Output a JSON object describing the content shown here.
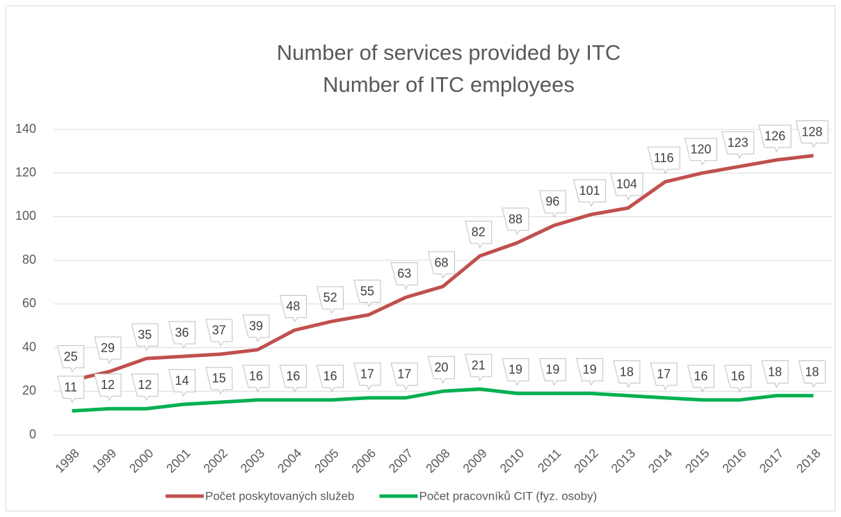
{
  "chart_data": {
    "type": "line",
    "title": [
      "Number of services provided by ITC",
      "Number of ITC employees"
    ],
    "categories": [
      "1998",
      "1999",
      "2000",
      "2001",
      "2002",
      "2003",
      "2004",
      "2005",
      "2006",
      "2007",
      "2008",
      "2009",
      "2010",
      "2011",
      "2012",
      "2013",
      "2014",
      "2015",
      "2016",
      "2017",
      "2018"
    ],
    "series": [
      {
        "name": "Počet poskytovaných služeb",
        "color": "#c0504d",
        "values": [
          25,
          29,
          35,
          36,
          37,
          39,
          48,
          52,
          55,
          63,
          68,
          82,
          88,
          96,
          101,
          104,
          116,
          120,
          123,
          126,
          128
        ]
      },
      {
        "name": "Počet pracovníků CIT (fyz. osoby)",
        "color": "#00b050",
        "values": [
          11,
          12,
          12,
          14,
          15,
          16,
          16,
          16,
          17,
          17,
          20,
          21,
          19,
          19,
          19,
          18,
          17,
          16,
          16,
          18,
          18
        ]
      }
    ],
    "ylim": [
      0,
      140
    ],
    "yticks": [
      0,
      20,
      40,
      60,
      80,
      100,
      120,
      140
    ],
    "grid": true,
    "legend": "bottom"
  }
}
